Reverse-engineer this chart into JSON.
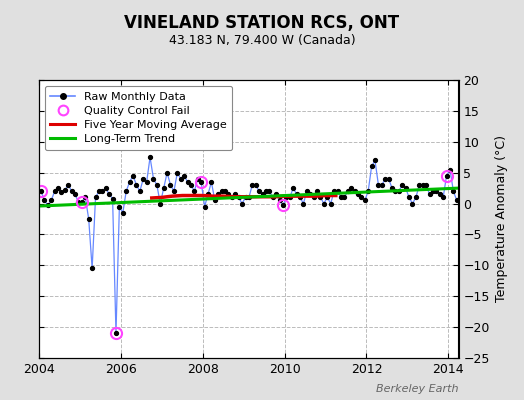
{
  "title": "VINELAND STATION RCS, ONT",
  "subtitle": "43.183 N, 79.400 W (Canada)",
  "ylabel": "Temperature Anomaly (°C)",
  "watermark": "Berkeley Earth",
  "background_color": "#e0e0e0",
  "plot_bg_color": "#ffffff",
  "xlim": [
    2004.0,
    2014.25
  ],
  "ylim": [
    -25,
    20
  ],
  "yticks": [
    -25,
    -20,
    -15,
    -10,
    -5,
    0,
    5,
    10,
    15,
    20
  ],
  "xticks": [
    2004,
    2006,
    2008,
    2010,
    2012,
    2014
  ],
  "raw_data_x": [
    2004.042,
    2004.125,
    2004.208,
    2004.292,
    2004.375,
    2004.458,
    2004.542,
    2004.625,
    2004.708,
    2004.792,
    2004.875,
    2004.958,
    2005.042,
    2005.125,
    2005.208,
    2005.292,
    2005.375,
    2005.458,
    2005.542,
    2005.625,
    2005.708,
    2005.792,
    2005.875,
    2005.958,
    2006.042,
    2006.125,
    2006.208,
    2006.292,
    2006.375,
    2006.458,
    2006.542,
    2006.625,
    2006.708,
    2006.792,
    2006.875,
    2006.958,
    2007.042,
    2007.125,
    2007.208,
    2007.292,
    2007.375,
    2007.458,
    2007.542,
    2007.625,
    2007.708,
    2007.792,
    2007.875,
    2007.958,
    2008.042,
    2008.125,
    2008.208,
    2008.292,
    2008.375,
    2008.458,
    2008.542,
    2008.625,
    2008.708,
    2008.792,
    2008.875,
    2008.958,
    2009.042,
    2009.125,
    2009.208,
    2009.292,
    2009.375,
    2009.458,
    2009.542,
    2009.625,
    2009.708,
    2009.792,
    2009.875,
    2009.958,
    2010.042,
    2010.125,
    2010.208,
    2010.292,
    2010.375,
    2010.458,
    2010.542,
    2010.625,
    2010.708,
    2010.792,
    2010.875,
    2010.958,
    2011.042,
    2011.125,
    2011.208,
    2011.292,
    2011.375,
    2011.458,
    2011.542,
    2011.625,
    2011.708,
    2011.792,
    2011.875,
    2011.958,
    2012.042,
    2012.125,
    2012.208,
    2012.292,
    2012.375,
    2012.458,
    2012.542,
    2012.625,
    2012.708,
    2012.792,
    2012.875,
    2012.958,
    2013.042,
    2013.125,
    2013.208,
    2013.292,
    2013.375,
    2013.458,
    2013.542,
    2013.625,
    2013.708,
    2013.792,
    2013.875,
    2013.958,
    2014.042,
    2014.125,
    2014.208
  ],
  "raw_data_y": [
    2.0,
    0.5,
    -0.3,
    0.5,
    2.0,
    2.5,
    1.8,
    2.2,
    3.0,
    2.0,
    1.5,
    0.2,
    0.3,
    1.0,
    -2.5,
    -10.5,
    1.0,
    2.0,
    2.0,
    2.5,
    1.5,
    0.8,
    -21.0,
    -0.5,
    -1.5,
    2.0,
    3.5,
    4.5,
    3.0,
    2.0,
    4.0,
    3.5,
    7.5,
    4.0,
    3.0,
    0.0,
    2.5,
    5.0,
    3.0,
    2.0,
    5.0,
    4.0,
    4.5,
    3.5,
    3.0,
    2.0,
    4.0,
    3.5,
    -0.5,
    1.5,
    3.5,
    0.5,
    1.5,
    2.0,
    2.0,
    1.5,
    1.0,
    1.5,
    1.0,
    0.0,
    1.0,
    1.0,
    3.0,
    3.0,
    2.0,
    1.5,
    2.0,
    2.0,
    1.0,
    1.5,
    0.5,
    -0.3,
    1.0,
    1.0,
    2.5,
    1.5,
    1.0,
    0.0,
    2.0,
    1.5,
    1.0,
    2.0,
    1.0,
    0.0,
    1.0,
    0.0,
    2.0,
    2.0,
    1.0,
    1.0,
    2.0,
    2.5,
    2.0,
    1.5,
    1.0,
    0.5,
    2.0,
    6.0,
    7.0,
    3.0,
    3.0,
    4.0,
    4.0,
    2.5,
    2.0,
    2.0,
    3.0,
    2.5,
    1.0,
    0.0,
    1.0,
    3.0,
    3.0,
    3.0,
    1.5,
    2.0,
    2.0,
    1.5,
    1.0,
    4.5,
    5.5,
    2.0,
    0.5
  ],
  "qc_fail_x": [
    2004.042,
    2005.042,
    2005.875,
    2007.958,
    2009.958,
    2013.958
  ],
  "qc_fail_y": [
    2.0,
    0.3,
    -21.0,
    3.5,
    -0.3,
    4.5
  ],
  "moving_avg_x": [
    2006.75,
    2007.0,
    2007.25,
    2007.5,
    2007.75,
    2008.0,
    2008.25,
    2008.5,
    2008.75,
    2009.0,
    2009.25,
    2009.5,
    2009.75,
    2010.0,
    2010.25,
    2010.5,
    2010.75,
    2011.0,
    2011.25
  ],
  "moving_avg_y": [
    0.9,
    1.0,
    1.2,
    1.3,
    1.3,
    1.3,
    1.2,
    1.2,
    1.1,
    1.1,
    1.1,
    1.1,
    1.1,
    1.2,
    1.2,
    1.2,
    1.2,
    1.3,
    1.3
  ],
  "trend_x": [
    2004.0,
    2014.25
  ],
  "trend_y": [
    -0.4,
    2.5
  ],
  "raw_line_color": "#6688ff",
  "raw_dot_color": "#000000",
  "qc_color": "#ff44ff",
  "moving_avg_color": "#dd0000",
  "trend_color": "#00bb00",
  "grid_color": "#bbbbbb",
  "grid_style": "--"
}
